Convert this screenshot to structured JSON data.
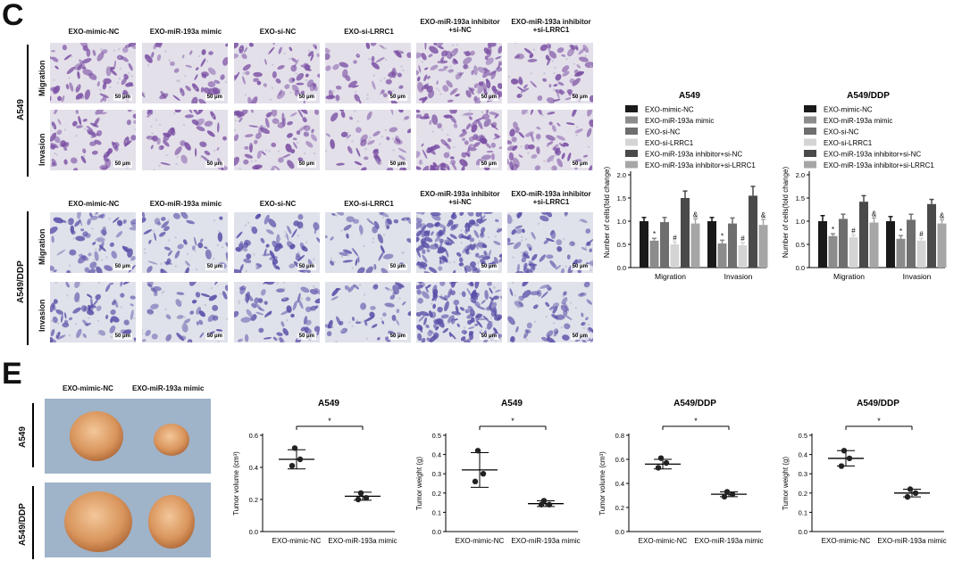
{
  "panel_c": {
    "letter": "C",
    "column_labels": [
      "EXO-mimic-NC",
      "EXO-miR-193a mimic",
      "EXO-si-NC",
      "EXO-si-LRRC1",
      "EXO-miR-193a inhibitor +si-NC",
      "EXO-miR-193a inhibitor +si-LRRC1"
    ],
    "group_a549": "A549",
    "group_ddp": "A549/DDP",
    "row_migration": "Migration",
    "row_invasion": "Invasion",
    "scale_bar": "50 μm"
  },
  "panel_e": {
    "letter": "E",
    "photo_labels": [
      "EXO-mimic-NC",
      "EXO-miR-193a mimic"
    ],
    "group_a549": "A549",
    "group_ddp": "A549/DDP"
  },
  "chart_data": [
    {
      "type": "bar",
      "title": "A549",
      "ylabel": "Number of cells(fold change)",
      "ylim": [
        0,
        2.0
      ],
      "yticks": [
        "0.0",
        "0.5",
        "1.0",
        "1.5",
        "2.0"
      ],
      "categories": [
        "Migration",
        "Invasion"
      ],
      "legend_position": "top",
      "series": [
        {
          "name": "EXO-mimic-NC",
          "color": "#1a1a1a",
          "values": [
            1.0,
            1.0
          ],
          "errors": [
            0.08,
            0.08
          ],
          "marks": [
            "",
            ""
          ]
        },
        {
          "name": "EXO-miR-193a mimic",
          "color": "#8c8c8c",
          "values": [
            0.58,
            0.52
          ],
          "errors": [
            0.05,
            0.07
          ],
          "marks": [
            "*",
            "*"
          ]
        },
        {
          "name": "EXO-si-NC",
          "color": "#6e6e6e",
          "values": [
            0.98,
            0.95
          ],
          "errors": [
            0.1,
            0.12
          ],
          "marks": [
            "",
            ""
          ]
        },
        {
          "name": "EXO-si-LRRC1",
          "color": "#d4d4d4",
          "values": [
            0.5,
            0.48
          ],
          "errors": [
            0.05,
            0.06
          ],
          "marks": [
            "#",
            "#"
          ]
        },
        {
          "name": "EXO-miR-193a inhibitor+si-NC",
          "color": "#4a4a4a",
          "values": [
            1.5,
            1.55
          ],
          "errors": [
            0.15,
            0.2
          ],
          "marks": [
            "",
            ""
          ]
        },
        {
          "name": "EXO-miR-193a inhibitor+si-LRRC1",
          "color": "#a6a6a6",
          "values": [
            0.95,
            0.92
          ],
          "errors": [
            0.1,
            0.12
          ],
          "marks": [
            "&",
            "&"
          ]
        }
      ]
    },
    {
      "type": "bar",
      "title": "A549/DDP",
      "ylabel": "Number of cells(fold change)",
      "ylim": [
        0,
        2.0
      ],
      "yticks": [
        "0.0",
        "0.5",
        "1.0",
        "1.5",
        "2.0"
      ],
      "categories": [
        "Migration",
        "Invasion"
      ],
      "legend_position": "top",
      "series": [
        {
          "name": "EXO-mimic-NC",
          "color": "#1a1a1a",
          "values": [
            1.0,
            1.0
          ],
          "errors": [
            0.12,
            0.1
          ],
          "marks": [
            "",
            ""
          ]
        },
        {
          "name": "EXO-miR-193a mimic",
          "color": "#8c8c8c",
          "values": [
            0.68,
            0.62
          ],
          "errors": [
            0.05,
            0.07
          ],
          "marks": [
            "*",
            "*"
          ]
        },
        {
          "name": "EXO-si-NC",
          "color": "#6e6e6e",
          "values": [
            1.05,
            1.03
          ],
          "errors": [
            0.1,
            0.12
          ],
          "marks": [
            "",
            ""
          ]
        },
        {
          "name": "EXO-si-LRRC1",
          "color": "#d4d4d4",
          "values": [
            0.65,
            0.58
          ],
          "errors": [
            0.05,
            0.05
          ],
          "marks": [
            "#",
            "#"
          ]
        },
        {
          "name": "EXO-miR-193a inhibitor+si-NC",
          "color": "#4a4a4a",
          "values": [
            1.42,
            1.37
          ],
          "errors": [
            0.13,
            0.1
          ],
          "marks": [
            "",
            ""
          ]
        },
        {
          "name": "EXO-miR-193a inhibitor+si-LRRC1",
          "color": "#a6a6a6",
          "values": [
            0.97,
            0.95
          ],
          "errors": [
            0.1,
            0.08
          ],
          "marks": [
            "&",
            "&"
          ]
        }
      ]
    },
    {
      "type": "scatter",
      "title": "A549",
      "ylabel": "Tumor volume (cm³)",
      "ylim": [
        0,
        0.6
      ],
      "yticks": [
        "0.0",
        "0.2",
        "0.4",
        "0.6"
      ],
      "categories": [
        "EXO-mimic-NC",
        "EXO-miR-193a mimic"
      ],
      "significance": "*",
      "groups": [
        {
          "points": [
            0.52,
            0.45,
            0.41
          ],
          "mean": 0.45,
          "sd": 0.06
        },
        {
          "points": [
            0.24,
            0.21,
            0.2
          ],
          "mean": 0.22,
          "sd": 0.025
        }
      ]
    },
    {
      "type": "scatter",
      "title": "A549",
      "ylabel": "Tumor weight (g)",
      "ylim": [
        0,
        0.5
      ],
      "yticks": [
        "0.0",
        "0.1",
        "0.2",
        "0.3",
        "0.4",
        "0.5"
      ],
      "categories": [
        "EXO-mimic-NC",
        "EXO-miR-193a mimic"
      ],
      "significance": "*",
      "groups": [
        {
          "points": [
            0.42,
            0.3,
            0.26
          ],
          "mean": 0.32,
          "sd": 0.09
        },
        {
          "points": [
            0.16,
            0.14,
            0.14
          ],
          "mean": 0.145,
          "sd": 0.015
        }
      ]
    },
    {
      "type": "scatter",
      "title": "A549/DDP",
      "ylabel": "Tumor volume (cm³)",
      "ylim": [
        0,
        0.8
      ],
      "yticks": [
        "0.0",
        "0.2",
        "0.4",
        "0.6",
        "0.8"
      ],
      "categories": [
        "EXO-mimic-NC",
        "EXO-miR-193a mimic"
      ],
      "significance": "*",
      "groups": [
        {
          "points": [
            0.61,
            0.57,
            0.53
          ],
          "mean": 0.56,
          "sd": 0.04
        },
        {
          "points": [
            0.33,
            0.31,
            0.29
          ],
          "mean": 0.31,
          "sd": 0.02
        }
      ]
    },
    {
      "type": "scatter",
      "title": "A549/DDP",
      "ylabel": "Tumor weight (g)",
      "ylim": [
        0,
        0.5
      ],
      "yticks": [
        "0.0",
        "0.1",
        "0.2",
        "0.3",
        "0.4",
        "0.5"
      ],
      "categories": [
        "EXO-mimic-NC",
        "EXO-miR-193a mimic"
      ],
      "significance": "*",
      "groups": [
        {
          "points": [
            0.42,
            0.38,
            0.34
          ],
          "mean": 0.38,
          "sd": 0.04
        },
        {
          "points": [
            0.22,
            0.2,
            0.18
          ],
          "mean": 0.2,
          "sd": 0.02
        }
      ]
    }
  ]
}
